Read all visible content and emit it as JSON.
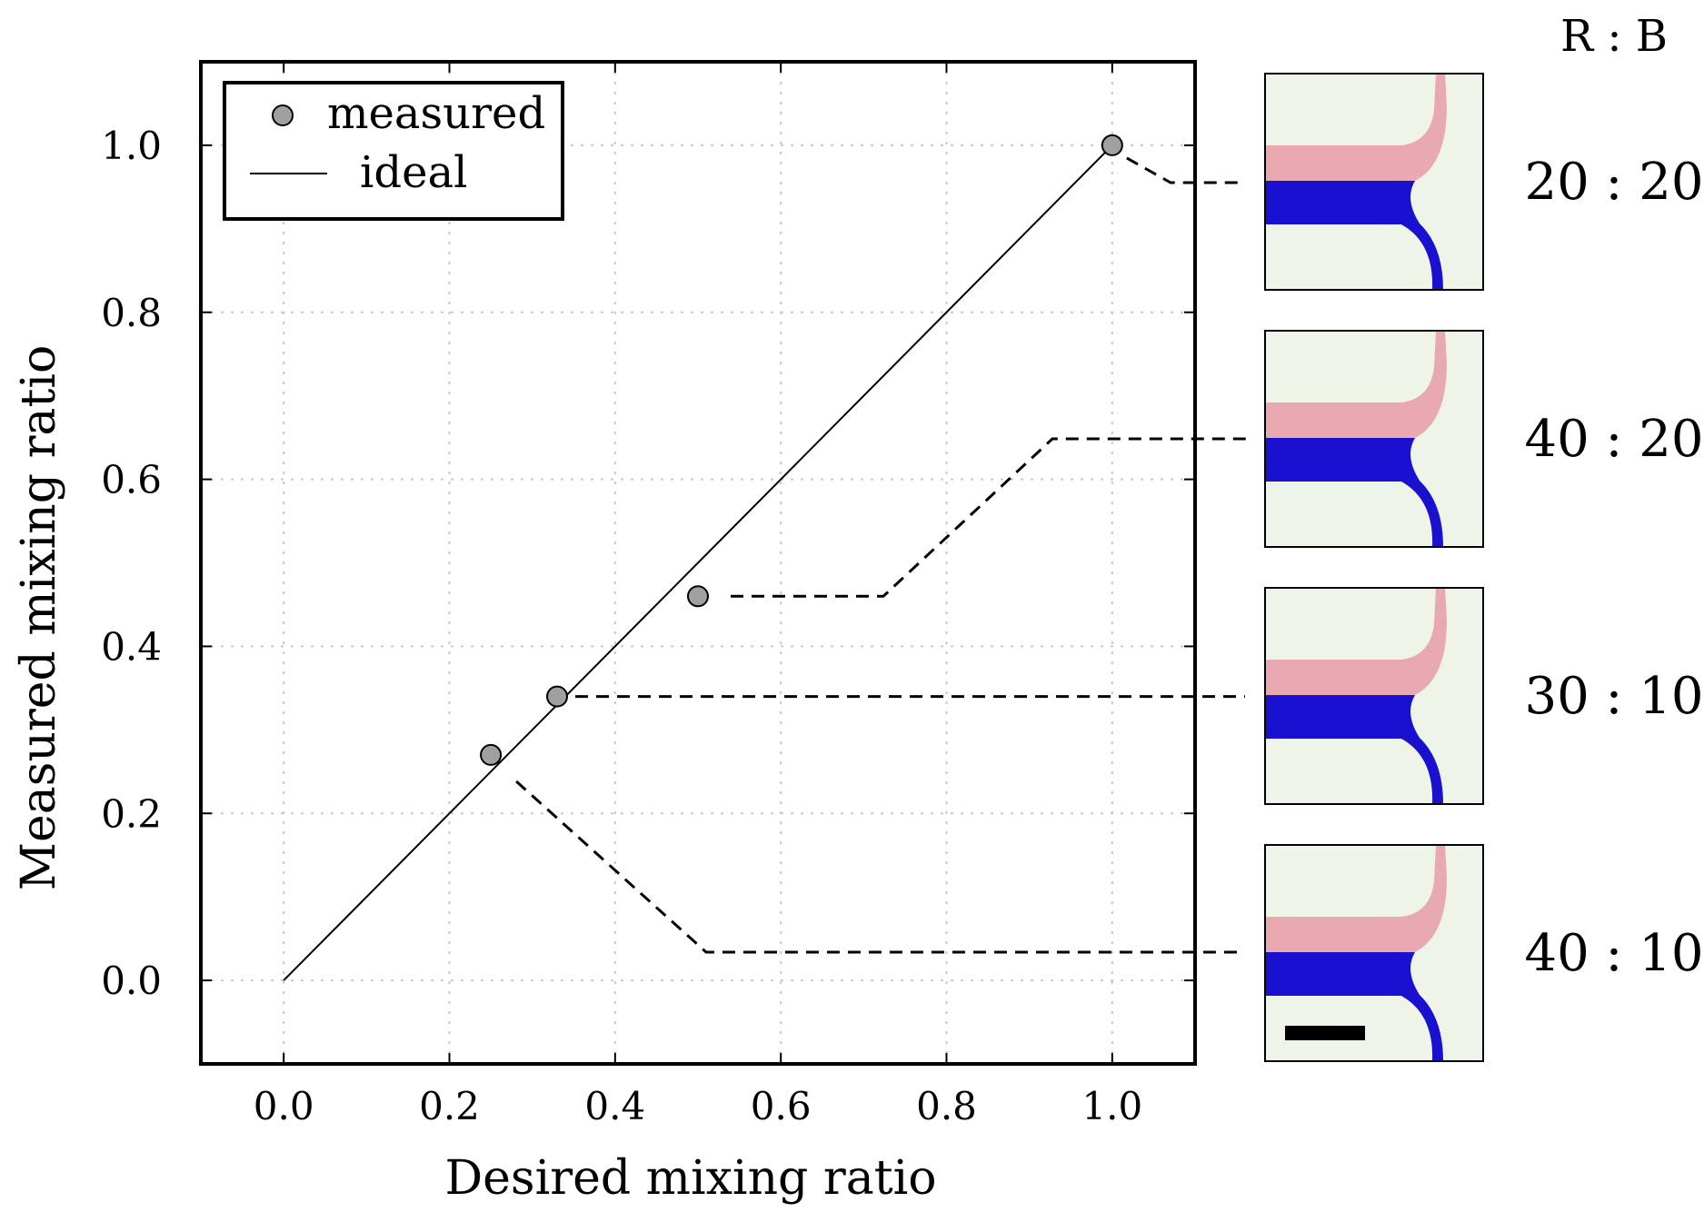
{
  "chart_data": {
    "type": "scatter",
    "title": "",
    "xlabel": "Desired mixing ratio",
    "ylabel": "Measured mixing ratio",
    "xlim": [
      -0.1,
      1.1
    ],
    "ylim": [
      -0.1,
      1.1
    ],
    "xticks": [
      0.0,
      0.2,
      0.4,
      0.6,
      0.8,
      1.0
    ],
    "yticks": [
      0.0,
      0.2,
      0.4,
      0.6,
      0.8,
      1.0
    ],
    "xtick_labels": [
      "0.0",
      "0.2",
      "0.4",
      "0.6",
      "0.8",
      "1.0"
    ],
    "ytick_labels": [
      "0.0",
      "0.2",
      "0.4",
      "0.6",
      "0.8",
      "1.0"
    ],
    "grid": true,
    "legend_position": "top-left",
    "series": [
      {
        "name": "measured",
        "kind": "scatter",
        "color": "#a0a0a0",
        "x": [
          0.25,
          0.33,
          0.5,
          1.0
        ],
        "y": [
          0.27,
          0.34,
          0.46,
          1.0
        ]
      },
      {
        "name": "ideal",
        "kind": "line",
        "color": "#000000",
        "x": [
          0.0,
          1.0
        ],
        "y": [
          0.0,
          1.0
        ]
      }
    ],
    "legend": [
      {
        "label": "measured",
        "marker": "circle"
      },
      {
        "label": "ideal",
        "marker": "line"
      }
    ]
  },
  "panel": {
    "header": "R : B",
    "ratios": [
      "20 : 20",
      "40 : 20",
      "30 : 10",
      "40 : 10"
    ],
    "colors": {
      "red_stream": "#e8a9b3",
      "blue_stream": "#1a10cf",
      "background": "#eef4e8",
      "scale_bar": "#000000"
    }
  }
}
